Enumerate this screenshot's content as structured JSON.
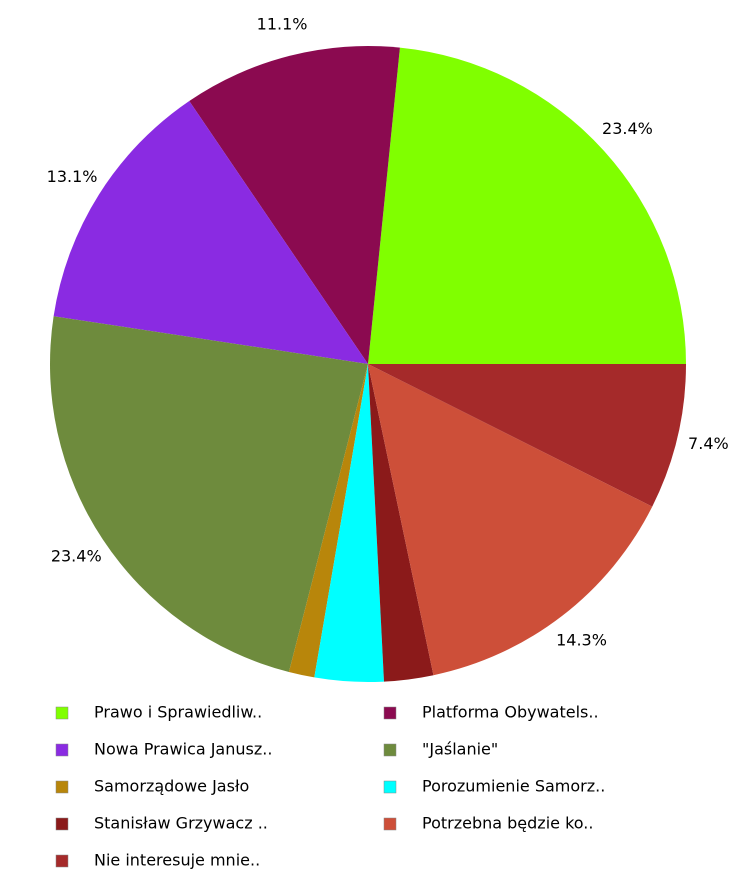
{
  "chart_data": {
    "type": "pie",
    "categories": [
      "Prawo i Sprawiedliw..",
      "Platforma Obywatels..",
      "Nowa Prawica Janusz..",
      "\"Jaślanie\"",
      "Samorządowe Jasło",
      "Porozumienie Samorz..",
      "Stanisław Grzywacz ..",
      "Potrzebna będzie ko..",
      "Nie interesuje mnie.."
    ],
    "values": [
      23.4,
      11.1,
      13.1,
      23.4,
      1.3,
      3.5,
      2.5,
      14.3,
      7.4
    ],
    "value_labels": [
      "23.4%",
      "11.1%",
      "13.1%",
      "23.4%",
      null,
      null,
      null,
      "14.3%",
      "7.4%"
    ],
    "colors": [
      "#80ff00",
      "#8b0a50",
      "#8a2be2",
      "#6e8b3d",
      "#b8860b",
      "#00ffff",
      "#8b1a1a",
      "#cd4f39",
      "#a52a2a"
    ]
  }
}
